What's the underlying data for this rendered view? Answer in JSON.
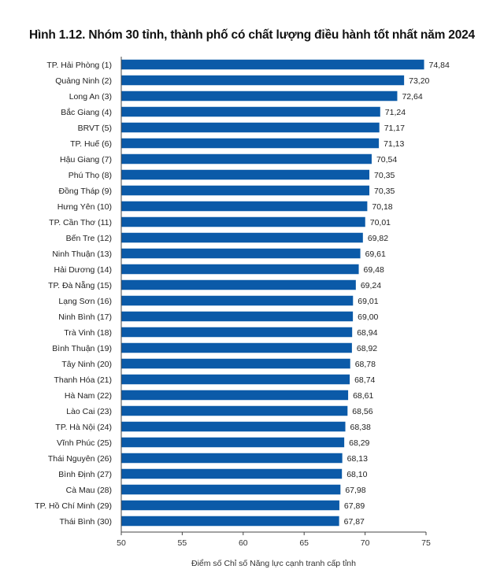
{
  "chart_data": {
    "type": "bar",
    "orientation": "horizontal",
    "title": "Hình 1.12. Nhóm 30 tỉnh, thành phố có chất lượng điều hành tốt nhất năm 2024",
    "xlabel": "Điểm số Chỉ số Năng lực cạnh tranh cấp tỉnh",
    "ylabel": "",
    "xlim": [
      50,
      75
    ],
    "xticks": [
      50,
      55,
      60,
      65,
      70,
      75
    ],
    "grid": false,
    "bar_color": "#0b5aa8",
    "categories": [
      "TP. Hải Phòng (1)",
      "Quảng Ninh (2)",
      "Long An (3)",
      "Bắc Giang (4)",
      "BRVT (5)",
      "TP. Huế (6)",
      "Hậu Giang (7)",
      "Phú Thọ (8)",
      "Đồng Tháp (9)",
      "Hưng Yên (10)",
      "TP. Cần Thơ (11)",
      "Bến Tre (12)",
      "Ninh Thuận (13)",
      "Hải Dương (14)",
      "TP. Đà Nẵng (15)",
      "Lạng Sơn (16)",
      "Ninh Bình (17)",
      "Trà Vinh (18)",
      "Bình Thuận (19)",
      "Tây Ninh (20)",
      "Thanh Hóa (21)",
      "Hà Nam (22)",
      "Lào Cai (23)",
      "TP. Hà Nội (24)",
      "Vĩnh Phúc (25)",
      "Thái Nguyên (26)",
      "Bình Định (27)",
      "Cà Mau (28)",
      "TP. Hồ Chí Minh (29)",
      "Thái Bình (30)"
    ],
    "values": [
      74.84,
      73.2,
      72.64,
      71.24,
      71.17,
      71.13,
      70.54,
      70.35,
      70.35,
      70.18,
      70.01,
      69.82,
      69.61,
      69.48,
      69.24,
      69.01,
      69.0,
      68.94,
      68.92,
      68.78,
      68.74,
      68.61,
      68.56,
      68.38,
      68.29,
      68.13,
      68.1,
      67.98,
      67.89,
      67.87
    ],
    "value_labels": [
      "74,84",
      "73,20",
      "72,64",
      "71,24",
      "71,17",
      "71,13",
      "70,54",
      "70,35",
      "70,35",
      "70,18",
      "70,01",
      "69,82",
      "69,61",
      "69,48",
      "69,24",
      "69,01",
      "69,00",
      "68,94",
      "68,92",
      "68,78",
      "68,74",
      "68,61",
      "68,56",
      "68,38",
      "68,29",
      "68,13",
      "68,10",
      "67,98",
      "67,89",
      "67,87"
    ]
  }
}
